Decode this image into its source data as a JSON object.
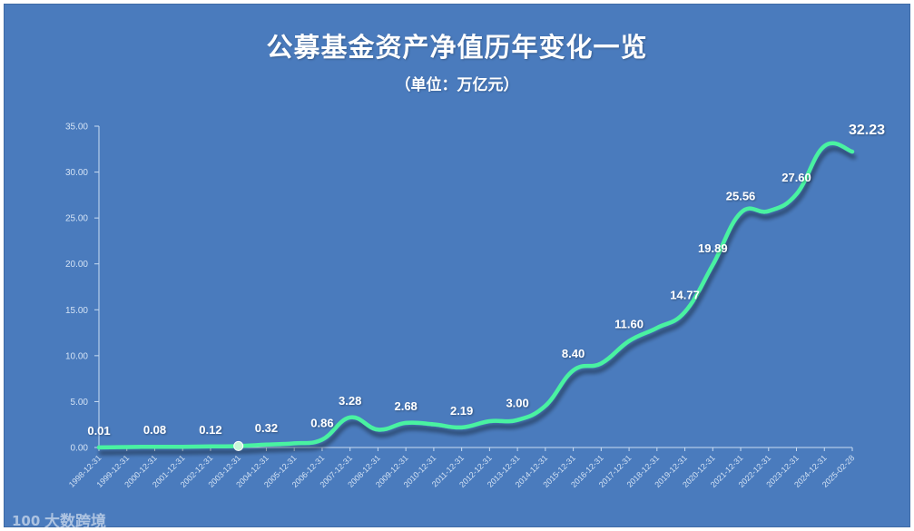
{
  "chart_data": {
    "type": "line",
    "title": "公募基金资产净值历年变化一览",
    "subtitle": "（单位：万亿元）",
    "ylim": [
      0,
      35
    ],
    "y_ticks": [
      "0.00",
      "5.00",
      "10.00",
      "15.00",
      "20.00",
      "25.00",
      "30.00",
      "35.00"
    ],
    "grid": false,
    "line_color": "#4af2a1",
    "categories": [
      "1998-12-31",
      "1999-12-31",
      "2000-12-31",
      "2001-12-31",
      "2002-12-31",
      "2003-12-31",
      "2004-12-31",
      "2005-12-31",
      "2006-12-31",
      "2007-12-31",
      "2008-12-31",
      "2009-12-31",
      "2010-12-31",
      "2011-12-31",
      "2012-12-31",
      "2013-12-31",
      "2014-12-31",
      "2015-12-31",
      "2016-12-31",
      "2017-12-31",
      "2018-12-31",
      "2019-12-31",
      "2020-12-31",
      "2021-12-31",
      "2022-12-31",
      "2023-12-31",
      "2024-12-31",
      "2025-02-28"
    ],
    "values": [
      0.01,
      0.05,
      0.08,
      0.08,
      0.12,
      0.16,
      0.32,
      0.46,
      0.86,
      3.28,
      1.95,
      2.68,
      2.52,
      2.19,
      2.87,
      3.0,
      4.54,
      8.4,
      9.16,
      11.6,
      13.03,
      14.77,
      19.89,
      25.56,
      25.75,
      27.6,
      32.83,
      32.23
    ],
    "data_labels": [
      {
        "index": 0,
        "text": "0.01"
      },
      {
        "index": 2,
        "text": "0.08"
      },
      {
        "index": 4,
        "text": "0.12"
      },
      {
        "index": 6,
        "text": "0.32"
      },
      {
        "index": 8,
        "text": "0.86"
      },
      {
        "index": 9,
        "text": "3.28"
      },
      {
        "index": 11,
        "text": "2.68"
      },
      {
        "index": 13,
        "text": "2.19"
      },
      {
        "index": 15,
        "text": "3.00"
      },
      {
        "index": 17,
        "text": "8.40"
      },
      {
        "index": 19,
        "text": "11.60"
      },
      {
        "index": 21,
        "text": "14.77"
      },
      {
        "index": 22,
        "text": "19.89"
      },
      {
        "index": 23,
        "text": "25.56"
      },
      {
        "index": 25,
        "text": "27.60"
      },
      {
        "index": 27,
        "text": "32.23",
        "emphasis": true
      }
    ],
    "marker_index": 5
  },
  "watermark": {
    "logo": "100",
    "text": "大数跨境"
  }
}
